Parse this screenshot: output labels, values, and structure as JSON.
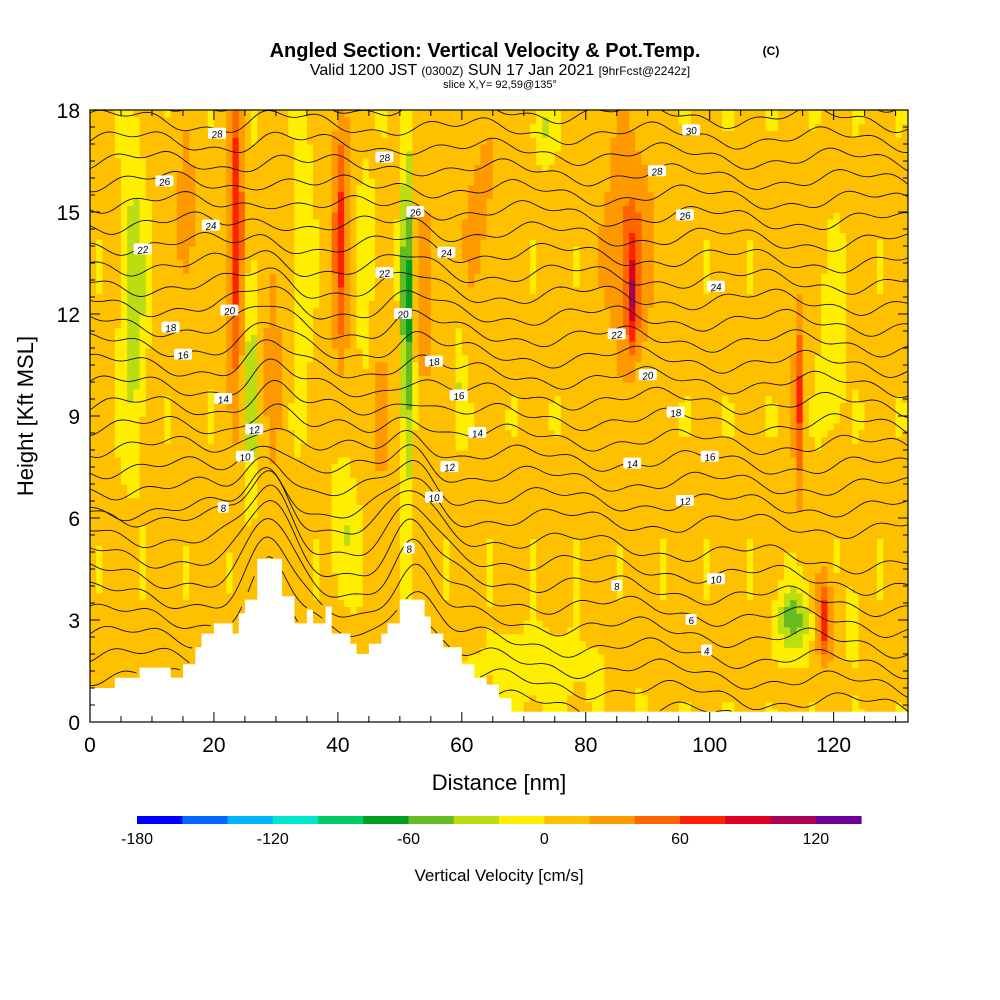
{
  "title": {
    "main": "Angled Section: Vertical Velocity & Pot.Temp.",
    "copyright": "(C)",
    "line2_a": "Valid 1200 JST",
    "line2_b": "(0300Z)",
    "line2_c": "SUN 17 Jan 2021",
    "line2_d": "[9hrFcst@2242z]",
    "line3": "slice X,Y= 92,59@135°"
  },
  "chart_data": {
    "type": "heatmap",
    "xlabel": "Distance [nm]",
    "ylabel": "Height [Kft MSL]",
    "xlim": [
      0,
      132
    ],
    "ylim": [
      0,
      18
    ],
    "x_ticks": [
      "0",
      "20",
      "40",
      "60",
      "80",
      "100",
      "120"
    ],
    "y_ticks": [
      "0",
      "3",
      "6",
      "9",
      "12",
      "15",
      "18"
    ],
    "colorbar": {
      "title": "Vertical Velocity [cm/s]",
      "tick_labels": [
        "-180",
        "-120",
        "-60",
        "0",
        "60",
        "120"
      ],
      "tick_values": [
        -180,
        -120,
        -60,
        0,
        60,
        120
      ],
      "bounds": [
        -180,
        140
      ],
      "step": 20,
      "colors": [
        "#0000ff",
        "#0066ff",
        "#00b3ff",
        "#00e6cc",
        "#00cc66",
        "#00a020",
        "#66bb22",
        "#bbdd11",
        "#ffee00",
        "#ffc000",
        "#ff9900",
        "#ff6600",
        "#ff2200",
        "#dd0022",
        "#aa0055",
        "#6a0099"
      ]
    },
    "background_velocity": 5,
    "velocity_features": [
      {
        "x": 7,
        "z": 12.5,
        "sx": 1.8,
        "sz": 4.0,
        "w": -45
      },
      {
        "x": 15.5,
        "z": 14.5,
        "sx": 2.0,
        "sz": 3.0,
        "w": 25
      },
      {
        "x": 23.5,
        "z": 14.5,
        "sx": 1.2,
        "sz": 4.5,
        "w": 75
      },
      {
        "x": 26,
        "z": 10.0,
        "sx": 1.0,
        "sz": 3.5,
        "w": -40
      },
      {
        "x": 29.5,
        "z": 11.0,
        "sx": 1.3,
        "sz": 3.5,
        "w": 30
      },
      {
        "x": 34.5,
        "z": 14.0,
        "sx": 1.2,
        "sz": 4.0,
        "w": -25
      },
      {
        "x": 40.5,
        "z": 14.5,
        "sx": 1.3,
        "sz": 4.0,
        "w": 60
      },
      {
        "x": 41,
        "z": 5.5,
        "sx": 1.8,
        "sz": 1.8,
        "w": -30
      },
      {
        "x": 44.5,
        "z": 13.0,
        "sx": 1.2,
        "sz": 3.5,
        "w": -20
      },
      {
        "x": 47,
        "z": 9.0,
        "sx": 2.0,
        "sz": 3.0,
        "w": 25
      },
      {
        "x": 51.2,
        "z": 12.0,
        "sx": 1.0,
        "sz": 5.0,
        "w": -75
      },
      {
        "x": 54,
        "z": 12.0,
        "sx": 1.5,
        "sz": 4.0,
        "w": 25
      },
      {
        "x": 59.5,
        "z": 10.0,
        "sx": 0.9,
        "sz": 1.5,
        "w": -25
      },
      {
        "x": 63,
        "z": 15.0,
        "sx": 3.5,
        "sz": 3.0,
        "w": 20
      },
      {
        "x": 73,
        "z": 17.5,
        "sx": 1.5,
        "sz": 1.0,
        "w": -30
      },
      {
        "x": 87,
        "z": 14.0,
        "sx": 4.0,
        "sz": 3.5,
        "w": 40
      },
      {
        "x": 87.5,
        "z": 12.5,
        "sx": 0.9,
        "sz": 1.5,
        "w": 65
      },
      {
        "x": 114.5,
        "z": 9.5,
        "sx": 0.9,
        "sz": 3.0,
        "w": 55
      },
      {
        "x": 120,
        "z": 11.0,
        "sx": 1.8,
        "sz": 2.5,
        "w": -25
      },
      {
        "x": 113.5,
        "z": 3.0,
        "sx": 2.5,
        "sz": 1.0,
        "w": -55
      },
      {
        "x": 118.5,
        "z": 3.0,
        "sx": 1.2,
        "sz": 1.2,
        "w": 70
      },
      {
        "x": 123,
        "z": 3.0,
        "sx": 0.8,
        "sz": 1.0,
        "w": -25
      },
      {
        "x": 72,
        "z": 1.5,
        "sx": 10.0,
        "sz": 1.2,
        "w": -15
      }
    ],
    "terrain_kft": [
      [
        0,
        1.0
      ],
      [
        4,
        1.0
      ],
      [
        4,
        1.3
      ],
      [
        8,
        1.3
      ],
      [
        8,
        1.6
      ],
      [
        13,
        1.6
      ],
      [
        13,
        1.3
      ],
      [
        15,
        1.3
      ],
      [
        15,
        1.7
      ],
      [
        17,
        1.7
      ],
      [
        17,
        2.2
      ],
      [
        18,
        2.2
      ],
      [
        18,
        2.6
      ],
      [
        20,
        2.6
      ],
      [
        20,
        2.9
      ],
      [
        23,
        2.9
      ],
      [
        23,
        2.6
      ],
      [
        24,
        2.6
      ],
      [
        24,
        3.2
      ],
      [
        25,
        3.2
      ],
      [
        25,
        3.6
      ],
      [
        27,
        3.6
      ],
      [
        27,
        4.8
      ],
      [
        31,
        4.8
      ],
      [
        31,
        3.7
      ],
      [
        33,
        3.7
      ],
      [
        33,
        2.9
      ],
      [
        35,
        2.9
      ],
      [
        35,
        3.3
      ],
      [
        36,
        3.3
      ],
      [
        36,
        2.9
      ],
      [
        38,
        2.9
      ],
      [
        38,
        3.4
      ],
      [
        39,
        3.4
      ],
      [
        39,
        2.6
      ],
      [
        42,
        2.6
      ],
      [
        42,
        2.3
      ],
      [
        43,
        2.3
      ],
      [
        43,
        2.0
      ],
      [
        45,
        2.0
      ],
      [
        45,
        2.3
      ],
      [
        47,
        2.3
      ],
      [
        47,
        2.6
      ],
      [
        48,
        2.6
      ],
      [
        48,
        2.9
      ],
      [
        50,
        2.9
      ],
      [
        50,
        3.6
      ],
      [
        54,
        3.6
      ],
      [
        54,
        3.1
      ],
      [
        55,
        3.1
      ],
      [
        55,
        2.6
      ],
      [
        57,
        2.6
      ],
      [
        57,
        2.2
      ],
      [
        60,
        2.2
      ],
      [
        60,
        1.7
      ],
      [
        62,
        1.7
      ],
      [
        62,
        1.3
      ],
      [
        64,
        1.3
      ],
      [
        64,
        1.1
      ],
      [
        66,
        1.1
      ],
      [
        66,
        0.7
      ],
      [
        68,
        0.7
      ],
      [
        68,
        0.3
      ],
      [
        132,
        0.3
      ]
    ],
    "theta_labels": [
      {
        "text": "28",
        "x": 20.5,
        "z": 17.3
      },
      {
        "text": "26",
        "x": 12,
        "z": 15.9
      },
      {
        "text": "24",
        "x": 19.5,
        "z": 14.6
      },
      {
        "text": "22",
        "x": 8.5,
        "z": 13.9
      },
      {
        "text": "20",
        "x": 22.5,
        "z": 12.1
      },
      {
        "text": "18",
        "x": 13,
        "z": 11.6
      },
      {
        "text": "16",
        "x": 15,
        "z": 10.8
      },
      {
        "text": "14",
        "x": 21.5,
        "z": 9.5
      },
      {
        "text": "12",
        "x": 26.5,
        "z": 8.6
      },
      {
        "text": "10",
        "x": 25,
        "z": 7.8
      },
      {
        "text": "8",
        "x": 21.5,
        "z": 6.3
      },
      {
        "text": "28",
        "x": 47.5,
        "z": 16.6
      },
      {
        "text": "26",
        "x": 52.5,
        "z": 15.0
      },
      {
        "text": "24",
        "x": 57.5,
        "z": 13.8
      },
      {
        "text": "22",
        "x": 47.5,
        "z": 13.2
      },
      {
        "text": "20",
        "x": 50.5,
        "z": 12.0
      },
      {
        "text": "18",
        "x": 55.5,
        "z": 10.6
      },
      {
        "text": "16",
        "x": 59.5,
        "z": 9.6
      },
      {
        "text": "14",
        "x": 62.5,
        "z": 8.5
      },
      {
        "text": "12",
        "x": 58,
        "z": 7.5
      },
      {
        "text": "10",
        "x": 55.5,
        "z": 6.6
      },
      {
        "text": "8",
        "x": 51.5,
        "z": 5.1
      },
      {
        "text": "30",
        "x": 97,
        "z": 17.4
      },
      {
        "text": "28",
        "x": 91.5,
        "z": 16.2
      },
      {
        "text": "26",
        "x": 96,
        "z": 14.9
      },
      {
        "text": "24",
        "x": 101,
        "z": 12.8
      },
      {
        "text": "22",
        "x": 85,
        "z": 11.4
      },
      {
        "text": "20",
        "x": 90,
        "z": 10.2
      },
      {
        "text": "18",
        "x": 94.5,
        "z": 9.1
      },
      {
        "text": "16",
        "x": 100,
        "z": 7.8
      },
      {
        "text": "14",
        "x": 87.5,
        "z": 7.6
      },
      {
        "text": "12",
        "x": 96,
        "z": 6.5
      },
      {
        "text": "10",
        "x": 101,
        "z": 4.2
      },
      {
        "text": "8",
        "x": 85,
        "z": 4.0
      },
      {
        "text": "6",
        "x": 97,
        "z": 3.0
      },
      {
        "text": "4",
        "x": 99.5,
        "z": 2.1
      }
    ],
    "theta_levels_c": [
      -2,
      -1,
      0,
      1,
      2,
      3,
      4,
      5,
      6,
      7,
      8,
      9,
      10,
      11,
      12,
      13,
      14,
      15,
      16,
      17,
      18,
      19,
      20,
      21,
      22,
      23,
      24,
      25,
      26,
      27,
      28,
      29,
      30,
      31,
      32,
      33,
      34
    ]
  }
}
